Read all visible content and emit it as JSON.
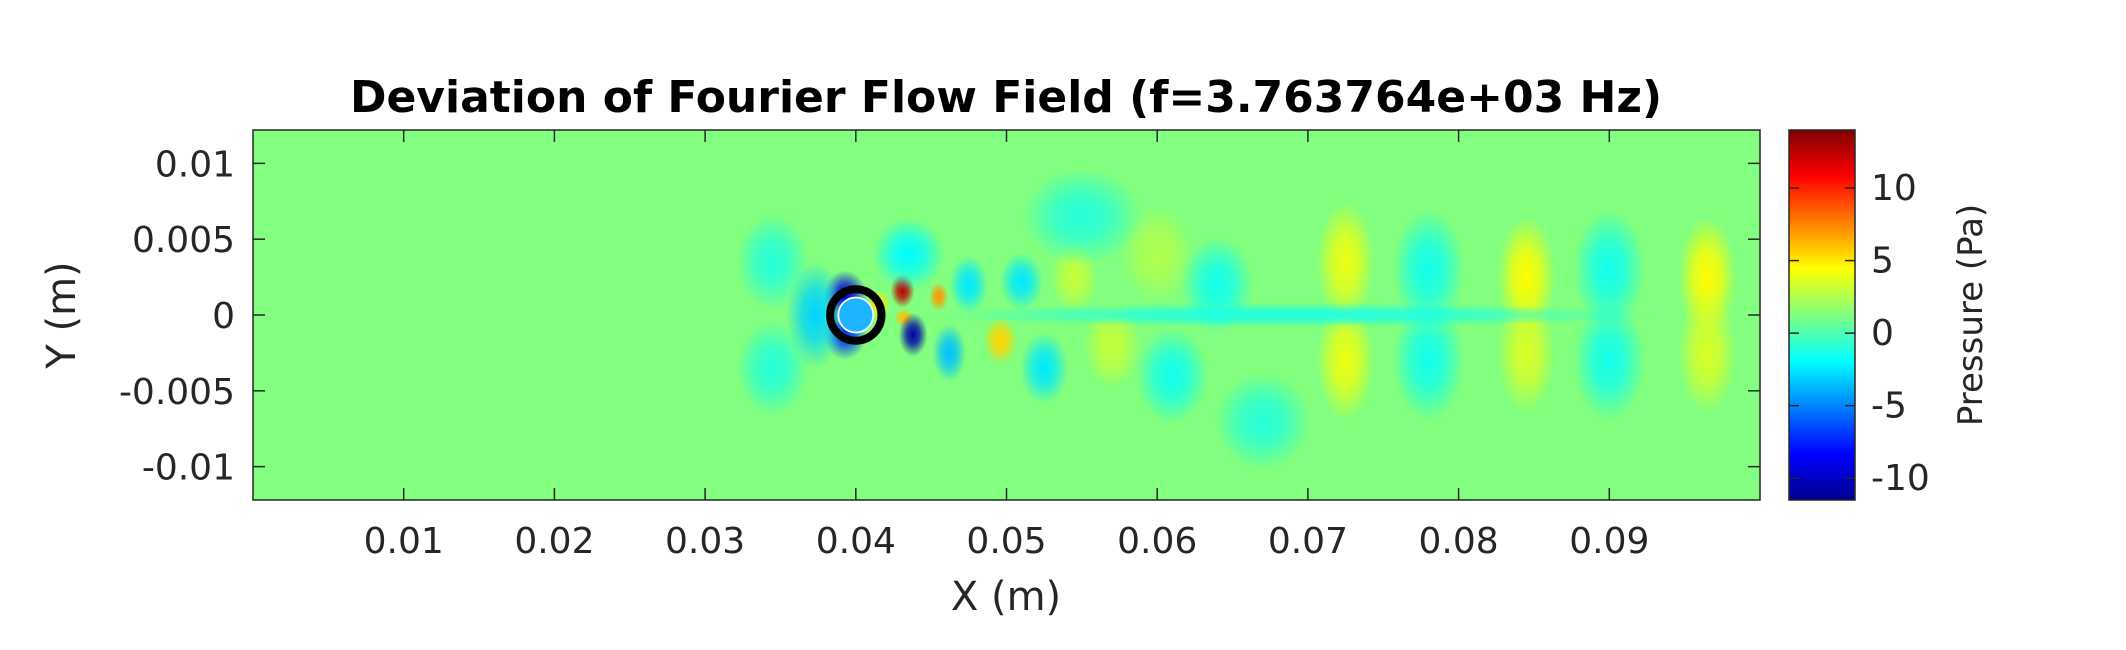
{
  "chart_data": {
    "type": "heatmap",
    "title": "Deviation of Fourier Flow Field (f=3.763764e+03 Hz)",
    "xlabel": "X (m)",
    "ylabel": "Y (m)",
    "xlim": [
      0,
      0.1
    ],
    "ylim": [
      -0.0122,
      0.0122
    ],
    "xticks": [
      0.01,
      0.02,
      0.03,
      0.04,
      0.05,
      0.06,
      0.07,
      0.08,
      0.09
    ],
    "xtick_labels": [
      "0.01",
      "0.02",
      "0.03",
      "0.04",
      "0.05",
      "0.06",
      "0.07",
      "0.08",
      "0.09"
    ],
    "yticks": [
      0.01,
      0.005,
      0,
      -0.005,
      -0.01
    ],
    "ytick_labels": [
      "0.01",
      "0.005",
      "0",
      "-0.005",
      "-0.01"
    ],
    "colorbar": {
      "label": "Pressure (Pa)",
      "colormap": "jet",
      "clim": [
        -11.5,
        14
      ],
      "ticks": [
        10,
        5,
        0,
        -5,
        -10
      ],
      "tick_labels": [
        "10",
        "5",
        "0",
        "-5",
        "-10"
      ]
    },
    "background_value": 1.3,
    "cylinder": {
      "center": [
        0.04,
        0
      ],
      "radius": 0.0011
    },
    "features": [
      {
        "x": 0.0393,
        "y": 0.0012,
        "sx": 0.0009,
        "sy": 0.0011,
        "value": -9
      },
      {
        "x": 0.0393,
        "y": -0.0012,
        "sx": 0.0009,
        "sy": 0.0011,
        "value": -7
      },
      {
        "x": 0.0373,
        "y": 0.0,
        "sx": 0.0012,
        "sy": 0.0022,
        "value": -3
      },
      {
        "x": 0.0415,
        "y": 0.0007,
        "sx": 0.0005,
        "sy": 0.0006,
        "value": 5
      },
      {
        "x": 0.0431,
        "y": 0.0016,
        "sx": 0.0005,
        "sy": 0.0007,
        "value": 12.5
      },
      {
        "x": 0.0432,
        "y": -0.0002,
        "sx": 0.0004,
        "sy": 0.0004,
        "value": 6
      },
      {
        "x": 0.0438,
        "y": -0.0013,
        "sx": 0.0006,
        "sy": 0.0009,
        "value": -10.5
      },
      {
        "x": 0.0455,
        "y": 0.0012,
        "sx": 0.0004,
        "sy": 0.0006,
        "value": 7
      },
      {
        "x": 0.0462,
        "y": -0.0025,
        "sx": 0.0007,
        "sy": 0.0012,
        "value": -3.5
      },
      {
        "x": 0.0435,
        "y": 0.004,
        "sx": 0.0015,
        "sy": 0.0015,
        "value": -2
      },
      {
        "x": 0.0475,
        "y": 0.002,
        "sx": 0.0008,
        "sy": 0.0012,
        "value": -2.5
      },
      {
        "x": 0.0496,
        "y": -0.0017,
        "sx": 0.0007,
        "sy": 0.001,
        "value": 5.5
      },
      {
        "x": 0.051,
        "y": 0.0022,
        "sx": 0.0009,
        "sy": 0.0012,
        "value": -2.5
      },
      {
        "x": 0.0525,
        "y": -0.0035,
        "sx": 0.001,
        "sy": 0.0015,
        "value": -2.5
      },
      {
        "x": 0.0545,
        "y": 0.0025,
        "sx": 0.001,
        "sy": 0.0015,
        "value": 3
      },
      {
        "x": 0.057,
        "y": -0.002,
        "sx": 0.0012,
        "sy": 0.0018,
        "value": 3
      },
      {
        "x": 0.06,
        "y": 0.004,
        "sx": 0.0015,
        "sy": 0.002,
        "value": 2.5
      },
      {
        "x": 0.061,
        "y": -0.004,
        "sx": 0.0015,
        "sy": 0.002,
        "value": -1.5
      },
      {
        "x": 0.064,
        "y": 0.002,
        "sx": 0.0015,
        "sy": 0.002,
        "value": -1.5
      },
      {
        "x": 0.0725,
        "y": 0.0035,
        "sx": 0.0012,
        "sy": 0.0025,
        "value": 4
      },
      {
        "x": 0.0725,
        "y": -0.003,
        "sx": 0.0012,
        "sy": 0.0025,
        "value": 4
      },
      {
        "x": 0.078,
        "y": 0.003,
        "sx": 0.0015,
        "sy": 0.0025,
        "value": -1.5
      },
      {
        "x": 0.078,
        "y": -0.003,
        "sx": 0.0015,
        "sy": 0.0025,
        "value": -1.5
      },
      {
        "x": 0.0845,
        "y": 0.0025,
        "sx": 0.0012,
        "sy": 0.0025,
        "value": 4.5
      },
      {
        "x": 0.0845,
        "y": -0.0025,
        "sx": 0.0012,
        "sy": 0.0025,
        "value": 3.5
      },
      {
        "x": 0.09,
        "y": 0.003,
        "sx": 0.0015,
        "sy": 0.0025,
        "value": -1.5
      },
      {
        "x": 0.09,
        "y": -0.003,
        "sx": 0.0015,
        "sy": 0.0025,
        "value": -1.5
      },
      {
        "x": 0.0965,
        "y": 0.0025,
        "sx": 0.0012,
        "sy": 0.0025,
        "value": 4.5
      },
      {
        "x": 0.0965,
        "y": -0.0025,
        "sx": 0.0012,
        "sy": 0.0025,
        "value": 3.5
      },
      {
        "x": 0.0345,
        "y": 0.0035,
        "sx": 0.0015,
        "sy": 0.002,
        "value": -1
      },
      {
        "x": 0.0345,
        "y": -0.0035,
        "sx": 0.0015,
        "sy": 0.002,
        "value": -1
      },
      {
        "x": 0.055,
        "y": 0.0065,
        "sx": 0.0025,
        "sy": 0.002,
        "value": -1
      },
      {
        "x": 0.067,
        "y": -0.007,
        "sx": 0.002,
        "sy": 0.002,
        "value": -1
      },
      {
        "x": 0.069,
        "y": 0.0,
        "sx": 0.015,
        "sy": 0.0005,
        "value": -1.2
      }
    ]
  }
}
